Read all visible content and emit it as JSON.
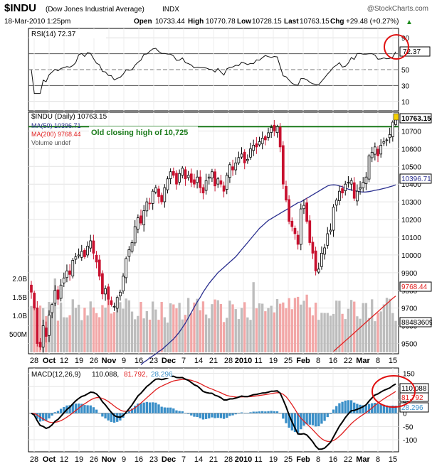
{
  "header": {
    "symbol": "$INDU",
    "name": "(Dow Jones Industrial Average)",
    "exchange": "INDX",
    "watermark": "@StockCharts.com",
    "date": "18-Mar-2010 1:25pm",
    "open_label": "Open",
    "open": "10733.44",
    "high_label": "High",
    "high": "10770.78",
    "low_label": "Low",
    "low": "10728.15",
    "last_label": "Last",
    "last": "10763.15",
    "chg_label": "Chg",
    "chg": "+29.48 (+0.27%)",
    "up_arrow": "▲"
  },
  "colors": {
    "up_candle": "#000000",
    "down_candle": "#c8102e",
    "ma50": "#2a2f8f",
    "ma200": "#e02020",
    "volume_up": "#bdbdbd",
    "volume_down": "#f2a7a7",
    "annotation_line": "#1a7a1a",
    "circle": "#e01010",
    "macd_hist": "#3a8fc8"
  },
  "rsi_panel": {
    "legend": "RSI(14) 72.37",
    "value_badge": "72.37",
    "ticks": [
      "90",
      "70",
      "50",
      "30",
      "10"
    ]
  },
  "price_panel": {
    "legend_main": "$INDU (Daily) 10763.15",
    "legend_ma50": "MA(50) 10396.71",
    "legend_ma200": "MA(200) 9768.44",
    "legend_volume": "Volume undef",
    "annotation": "Old closing high of 10,725",
    "last_badge": "10763.15",
    "ma50_badge": "10396.71",
    "ma200_badge": "9768.44",
    "volume_badge": "88483609",
    "price_ticks": [
      "10700",
      "10600",
      "10500",
      "10400",
      "10300",
      "10200",
      "10100",
      "10000",
      "9900",
      "9800",
      "9700",
      "9600",
      "9500"
    ],
    "volume_ticks": [
      "2.0B",
      "1.5B",
      "1.0B",
      "500M"
    ],
    "x_labels": [
      "28",
      "Oct",
      "12",
      "19",
      "26",
      "Nov",
      "9",
      "16",
      "23",
      "Dec",
      "7",
      "14",
      "21",
      "28",
      "2010",
      "11",
      "19",
      "25",
      "Feb",
      "8",
      "16",
      "22",
      "Mar",
      "8",
      "15"
    ]
  },
  "macd_panel": {
    "legend_prefix": "MACD(12,26,9)",
    "legend_macd": "110.088,",
    "legend_signal": "81.792,",
    "legend_hist": "28.296",
    "macd_badge": "110.088",
    "signal_badge": "81.792",
    "hist_badge": "28.296",
    "ticks": [
      "150",
      "100",
      "50",
      "0",
      "-50",
      "-100"
    ],
    "x_labels": [
      "28",
      "Oct",
      "12",
      "19",
      "26",
      "Nov",
      "9",
      "16",
      "23",
      "Dec",
      "7",
      "14",
      "21",
      "28",
      "2010",
      "11",
      "19",
      "25",
      "Feb",
      "8",
      "16",
      "22",
      "Mar",
      "8",
      "15"
    ]
  },
  "chart_data": {
    "type": "candlestick",
    "title": "$INDU (Dow Jones Industrial Average) INDX",
    "price_range": [
      9450,
      10790
    ],
    "closes": [
      9790,
      9700,
      9500,
      9480,
      9600,
      9540,
      9660,
      9720,
      9800,
      9750,
      9830,
      9870,
      9910,
      9890,
      9970,
      9990,
      10000,
      10020,
      9990,
      10050,
      10080,
      10010,
      9960,
      9880,
      9780,
      9810,
      9750,
      9720,
      9710,
      9760,
      9790,
      9880,
      9980,
      10030,
      10070,
      10160,
      10210,
      10180,
      10250,
      10300,
      10290,
      10360,
      10380,
      10330,
      10300,
      10380,
      10430,
      10470,
      10450,
      10400,
      10460,
      10490,
      10430,
      10450,
      10410,
      10400,
      10440,
      10380,
      10350,
      10420,
      10440,
      10470,
      10390,
      10430,
      10400,
      10360,
      10450,
      10510,
      10480,
      10520,
      10550,
      10570,
      10520,
      10540,
      10600,
      10620,
      10610,
      10640,
      10660,
      10650,
      10690,
      10720,
      10700,
      10725,
      10610,
      10400,
      10310,
      10190,
      10160,
      10120,
      10060,
      10260,
      10280,
      10190,
      10070,
      10010,
      9910,
      9920,
      10010,
      10040,
      10120,
      10140,
      10270,
      10310,
      10360,
      10350,
      10400,
      10410,
      10420,
      10320,
      10360,
      10380,
      10410,
      10440,
      10560,
      10580,
      10610,
      10560,
      10620,
      10640,
      10650,
      10680,
      10750,
      10763
    ],
    "ma50": [
      9380,
      9395,
      9405,
      9420,
      9430,
      9440,
      9455,
      9465,
      9480,
      9495,
      9510,
      9525,
      9545,
      9565,
      9590,
      9615,
      9645,
      9675,
      9705,
      9735,
      9760,
      9790,
      9815,
      9840,
      9860,
      9880,
      9900,
      9915,
      9930,
      9945,
      9960,
      9975,
      9990,
      10010,
      10030,
      10050,
      10070,
      10090,
      10110,
      10130,
      10150,
      10165,
      10180,
      10195,
      10205,
      10215,
      10225,
      10235,
      10245,
      10255,
      10265,
      10275,
      10285,
      10295,
      10300,
      10310,
      10320,
      10330,
      10340,
      10350,
      10360,
      10370,
      10380,
      10390,
      10395,
      10396,
      10395,
      10390,
      10385,
      10378,
      10372,
      10368,
      10364,
      10360,
      10357,
      10355,
      10356,
      10358,
      10361,
      10365,
      10368,
      10372,
      10376,
      10380,
      10385,
      10390,
      10396
    ],
    "ma50_start_index": 37,
    "ma200": [
      9455,
      9470,
      9485,
      9500,
      9515,
      9530,
      9545,
      9560,
      9575,
      9590,
      9605,
      9620,
      9635,
      9650,
      9665,
      9680,
      9695,
      9710,
      9725,
      9740,
      9755,
      9768
    ],
    "ma200_start_index": 102,
    "volume_range": [
      0,
      2500000000
    ],
    "rsi_range": [
      0,
      100
    ],
    "rsi_last": 72.37,
    "macd_range": [
      -140,
      165
    ],
    "macd_last": 110.088,
    "signal_last": 81.792,
    "hist_last": 28.296,
    "annotation_level": 10725
  }
}
